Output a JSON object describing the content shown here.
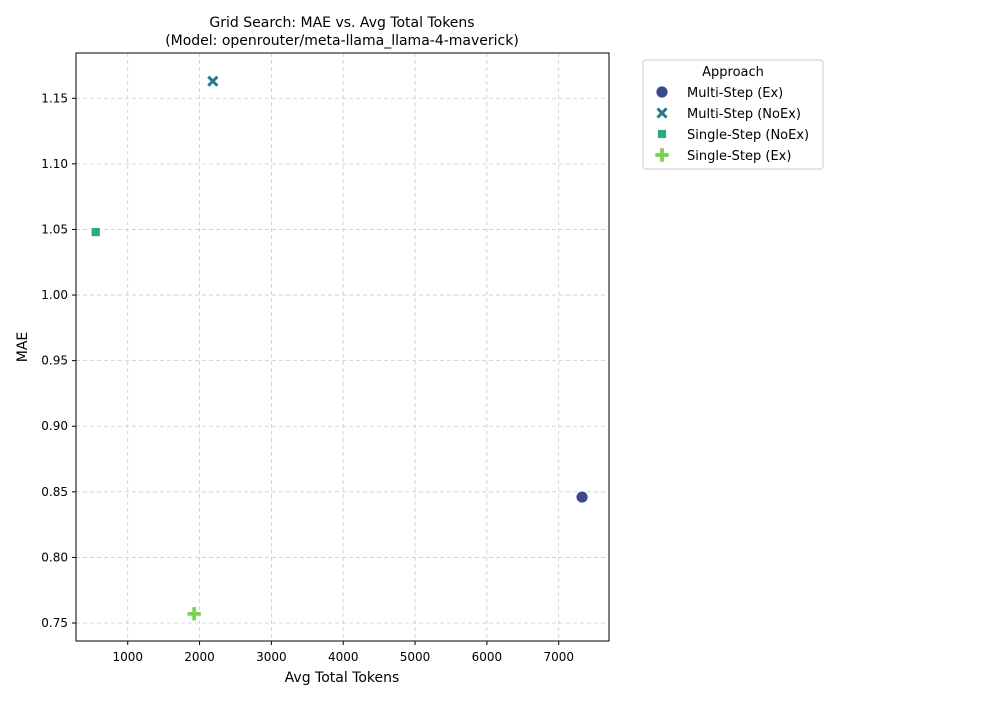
{
  "chart_data": {
    "type": "scatter",
    "title": "Grid Search: MAE vs. Avg Total Tokens",
    "subtitle": "(Model: openrouter/meta-llama_llama-4-maverick)",
    "xlabel": "Avg Total Tokens",
    "ylabel": "MAE",
    "xlim": [
      280,
      7700
    ],
    "ylim": [
      0.7363,
      1.1845
    ],
    "xticks": [
      1000,
      2000,
      3000,
      4000,
      5000,
      6000,
      7000
    ],
    "yticks": [
      0.75,
      0.8,
      0.85,
      0.9,
      0.95,
      1.0,
      1.05,
      1.1,
      1.15
    ],
    "xtick_labels": [
      "1000",
      "2000",
      "3000",
      "4000",
      "5000",
      "6000",
      "7000"
    ],
    "ytick_labels": [
      "0.75",
      "0.80",
      "0.85",
      "0.90",
      "0.95",
      "1.00",
      "1.05",
      "1.10",
      "1.15"
    ],
    "grid": true,
    "legend": {
      "title": "Approach",
      "placement": "outside-right-top"
    },
    "series": [
      {
        "name": "Multi-Step (Ex)",
        "marker": "circle",
        "color": "#3b4a8c",
        "points": [
          {
            "x": 7325,
            "y": 0.846
          }
        ]
      },
      {
        "name": "Multi-Step (NoEx)",
        "marker": "x",
        "color": "#26788a",
        "points": [
          {
            "x": 2185,
            "y": 1.163
          }
        ]
      },
      {
        "name": "Single-Step (NoEx)",
        "marker": "square",
        "color": "#2aaa80",
        "points": [
          {
            "x": 555,
            "y": 1.048
          }
        ]
      },
      {
        "name": "Single-Step (Ex)",
        "marker": "plus",
        "color": "#7ad151",
        "points": [
          {
            "x": 1925,
            "y": 0.757
          }
        ]
      }
    ]
  }
}
